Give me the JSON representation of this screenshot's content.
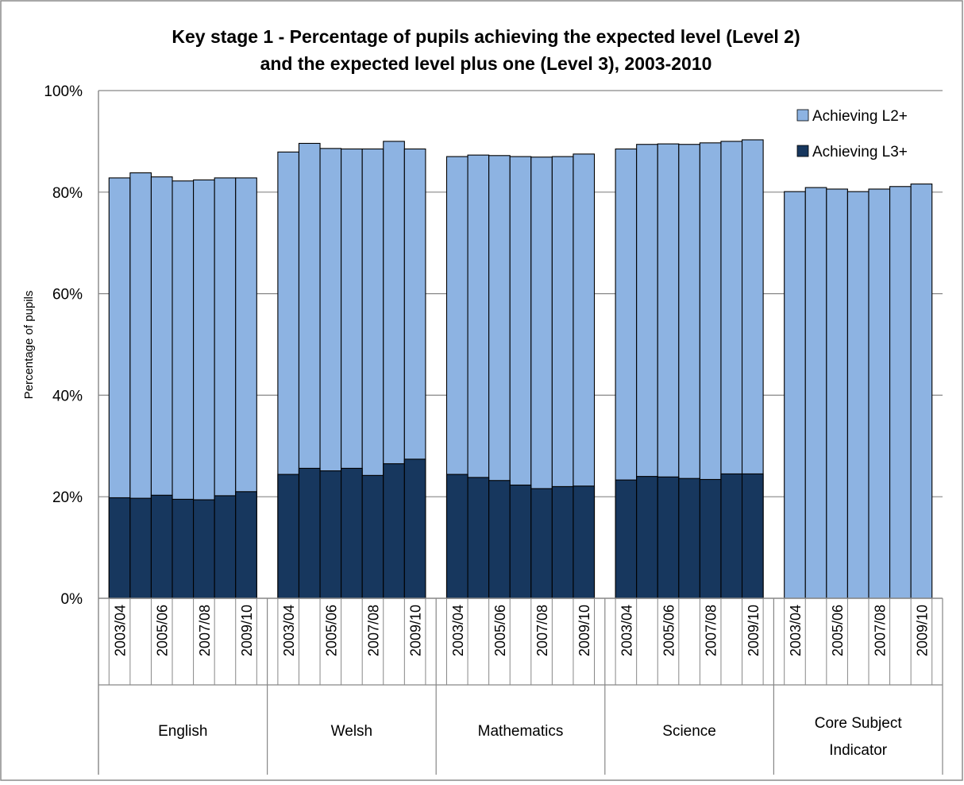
{
  "chart_data": {
    "type": "bar",
    "stacked": "overlap",
    "title": "Key stage 1 - Percentage of pupils achieving the expected level (Level 2) and the expected level plus one (Level 3), 2003-2010",
    "title_lines": [
      "Key stage 1 - Percentage of pupils achieving the expected level (Level 2)",
      "and the expected level plus one (Level 3), 2003-2010"
    ],
    "xlabel": "",
    "ylabel": "Percentage of pupils",
    "ylim": [
      0,
      100
    ],
    "yticks": [
      "0%",
      "20%",
      "40%",
      "60%",
      "80%",
      "100%"
    ],
    "grid": true,
    "legend_position": "top-right",
    "years": [
      "2003/04",
      "2004/05",
      "2005/06",
      "2006/07",
      "2007/08",
      "2008/09",
      "2009/10"
    ],
    "year_tick_labels": [
      "2003/04",
      "",
      "2005/06",
      "",
      "2007/08",
      "",
      "2009/10"
    ],
    "groups": [
      {
        "name": "English",
        "label_lines": [
          "English"
        ],
        "l2": [
          82.8,
          83.8,
          83.0,
          82.2,
          82.4,
          82.8,
          82.8
        ],
        "l3": [
          19.8,
          19.7,
          20.3,
          19.5,
          19.4,
          20.2,
          21.0
        ]
      },
      {
        "name": "Welsh",
        "label_lines": [
          "Welsh"
        ],
        "l2": [
          87.9,
          89.6,
          88.6,
          88.5,
          88.5,
          90.0,
          88.5
        ],
        "l3": [
          24.4,
          25.6,
          25.1,
          25.6,
          24.2,
          26.5,
          27.4
        ]
      },
      {
        "name": "Mathematics",
        "label_lines": [
          "Mathematics"
        ],
        "l2": [
          87.0,
          87.3,
          87.2,
          87.0,
          86.9,
          87.0,
          87.5
        ],
        "l3": [
          24.4,
          23.8,
          23.2,
          22.3,
          21.6,
          22.0,
          22.1
        ]
      },
      {
        "name": "Science",
        "label_lines": [
          "Science"
        ],
        "l2": [
          88.5,
          89.4,
          89.5,
          89.4,
          89.7,
          90.0,
          90.3
        ],
        "l3": [
          23.3,
          24.0,
          23.9,
          23.6,
          23.4,
          24.5,
          24.5
        ]
      },
      {
        "name": "Core Subject Indicator",
        "label_lines": [
          "Core Subject",
          "Indicator"
        ],
        "l2": [
          80.1,
          80.9,
          80.6,
          80.1,
          80.6,
          81.1,
          81.6
        ],
        "l3": [
          null,
          null,
          null,
          null,
          null,
          null,
          null
        ]
      }
    ],
    "series": [
      {
        "name": "Achieving L2+",
        "color": "#8db3e2"
      },
      {
        "name": "Achieving L3+",
        "color": "#17375e"
      }
    ]
  }
}
